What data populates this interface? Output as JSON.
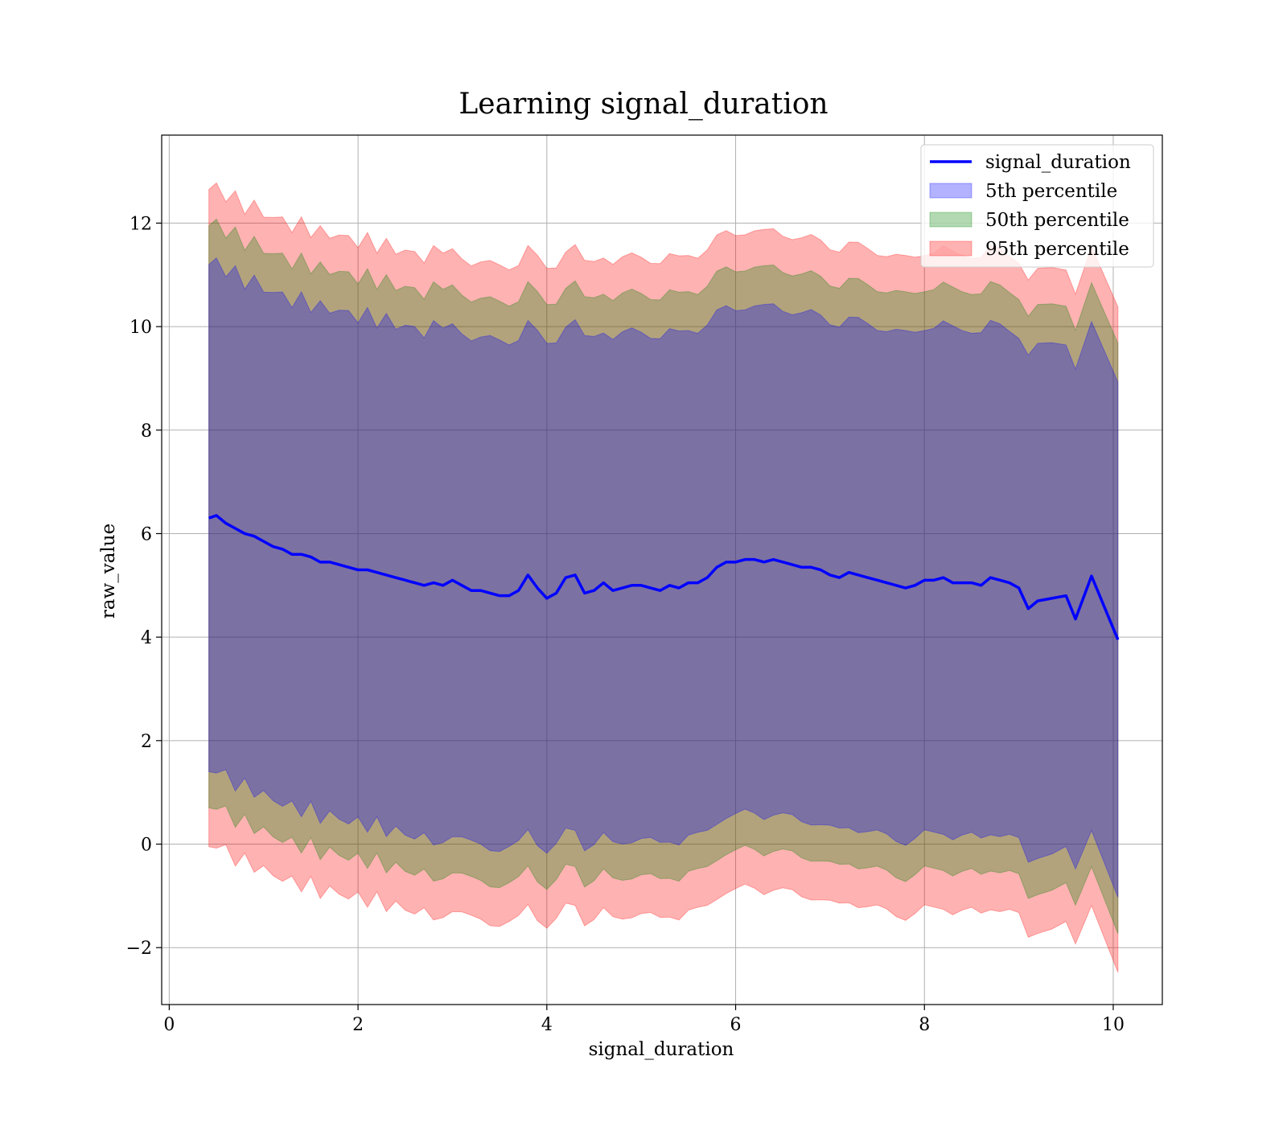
{
  "chart_data": {
    "type": "line",
    "title": "Learning signal_duration",
    "xlabel": "signal_duration",
    "ylabel": "raw_value",
    "xlim": [
      -0.08,
      10.52
    ],
    "ylim": [
      -3.1,
      13.7
    ],
    "x_ticks": [
      0,
      2,
      4,
      6,
      8,
      10
    ],
    "y_ticks": [
      -2,
      0,
      2,
      4,
      6,
      8,
      10,
      12
    ],
    "x_tick_labels": [
      "0",
      "2",
      "4",
      "6",
      "8",
      "10"
    ],
    "y_tick_labels": [
      "−2",
      "0",
      "2",
      "4",
      "6",
      "8",
      "10",
      "12"
    ],
    "grid": true,
    "legend_position": "top-right",
    "line_series": {
      "name": "signal_duration",
      "color": "#0000ff",
      "x": [
        0.42,
        0.5,
        0.6,
        0.7,
        0.8,
        0.9,
        1.0,
        1.1,
        1.2,
        1.3,
        1.4,
        1.5,
        1.6,
        1.7,
        1.8,
        1.9,
        2.0,
        2.1,
        2.2,
        2.3,
        2.4,
        2.5,
        2.6,
        2.7,
        2.8,
        2.9,
        3.0,
        3.1,
        3.2,
        3.3,
        3.4,
        3.5,
        3.6,
        3.7,
        3.8,
        3.9,
        4.0,
        4.1,
        4.2,
        4.3,
        4.4,
        4.5,
        4.6,
        4.7,
        4.8,
        4.9,
        5.0,
        5.1,
        5.2,
        5.3,
        5.4,
        5.5,
        5.6,
        5.7,
        5.8,
        5.9,
        6.0,
        6.1,
        6.2,
        6.3,
        6.4,
        6.5,
        6.6,
        6.7,
        6.8,
        6.9,
        7.0,
        7.1,
        7.2,
        7.3,
        7.4,
        7.5,
        7.6,
        7.7,
        7.8,
        7.9,
        8.0,
        8.1,
        8.2,
        8.3,
        8.4,
        8.5,
        8.6,
        8.7,
        8.8,
        8.9,
        9.0,
        9.1,
        9.2,
        9.35,
        9.5,
        9.6,
        9.77,
        10.05
      ],
      "y": [
        6.3,
        6.35,
        6.2,
        6.1,
        6.0,
        5.95,
        5.85,
        5.75,
        5.7,
        5.6,
        5.6,
        5.55,
        5.45,
        5.45,
        5.4,
        5.35,
        5.3,
        5.3,
        5.25,
        5.2,
        5.15,
        5.1,
        5.05,
        5.0,
        5.05,
        5.0,
        5.1,
        5.0,
        4.9,
        4.9,
        4.85,
        4.8,
        4.8,
        4.9,
        5.2,
        4.95,
        4.75,
        4.85,
        5.15,
        5.2,
        4.85,
        4.9,
        5.05,
        4.9,
        4.95,
        5.0,
        5.0,
        4.95,
        4.9,
        5.0,
        4.95,
        5.05,
        5.05,
        5.15,
        5.35,
        5.45,
        5.45,
        5.5,
        5.5,
        5.45,
        5.5,
        5.45,
        5.4,
        5.35,
        5.35,
        5.3,
        5.2,
        5.15,
        5.25,
        5.2,
        5.15,
        5.1,
        5.05,
        5.0,
        4.95,
        5.0,
        5.1,
        5.1,
        5.15,
        5.05,
        5.05,
        5.05,
        5.0,
        5.15,
        5.1,
        5.05,
        4.95,
        4.55,
        4.7,
        4.75,
        4.8,
        4.35,
        5.18,
        3.95
      ]
    },
    "bands": [
      {
        "name": "5th percentile",
        "color": "#0000ff",
        "upper_offset": 4.9,
        "lower_offset": -4.9
      },
      {
        "name": "50th percentile",
        "color": "#008000",
        "upper_offset": 5.65,
        "lower_offset": -5.6
      },
      {
        "name": "95th percentile",
        "color": "#ff0000",
        "upper_offset": 6.35,
        "lower_offset": -6.35
      }
    ],
    "legend": [
      "signal_duration",
      "5th percentile",
      "50th percentile",
      "95th percentile"
    ]
  }
}
